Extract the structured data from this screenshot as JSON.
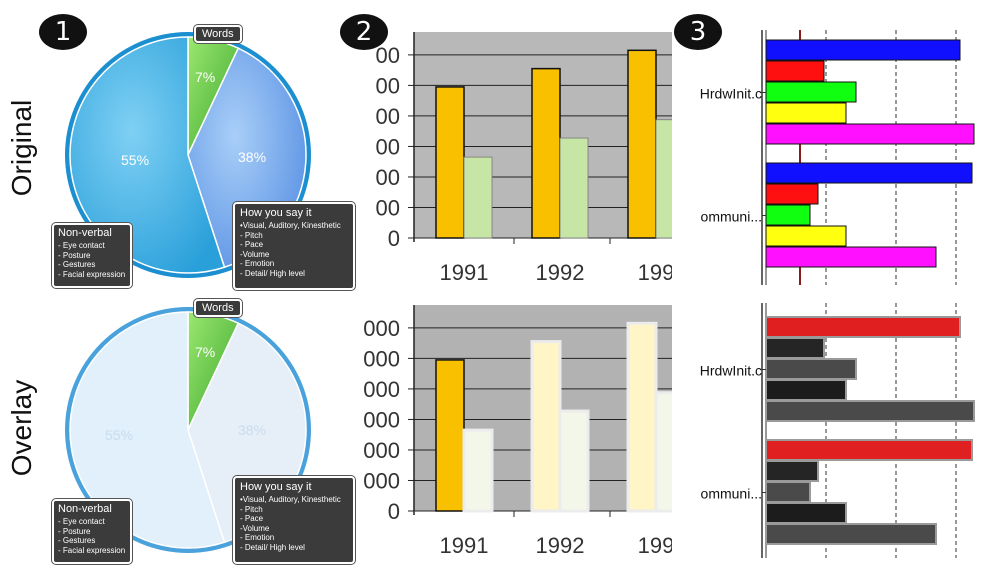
{
  "badges": [
    "1",
    "2",
    "3"
  ],
  "row_labels": [
    "Original",
    "Overlay"
  ],
  "chart_data": [
    {
      "type": "pie",
      "categories": [
        "Words",
        "How you say it",
        "Non-verbal"
      ],
      "values": [
        7,
        38,
        55
      ],
      "slice_labels": [
        "7%",
        "38%",
        "55%"
      ],
      "callouts": {
        "words": "Words",
        "how_title": "How you say it",
        "how_items": [
          "•Visual, Auditory, Kinesthetic",
          "- Pitch",
          "- Pace",
          "-Volume",
          "- Emotion",
          "- Detail/ High level"
        ],
        "nonverbal_title": "Non-verbal",
        "nonverbal_items": [
          "- Eye contact",
          "- Posture",
          "- Gestures",
          "- Facial expression"
        ]
      }
    },
    {
      "type": "bar",
      "categories": [
        "1991",
        "1992",
        "199"
      ],
      "category_labels": [
        "1991",
        "1992",
        "199"
      ],
      "y_tick_labels": [
        "0",
        "00",
        "00",
        "00",
        "00",
        "00",
        "00"
      ],
      "y_tick_labels_overlay": [
        "0",
        "000",
        "000",
        "000",
        "000",
        "000",
        "000"
      ],
      "series": [
        {
          "values": [
            198,
            222,
            246
          ]
        },
        {
          "values": [
            106,
            131,
            155
          ]
        }
      ],
      "ylim": [
        0,
        270
      ],
      "colors": {
        "series1": "#f9c000",
        "series2": "#c7e6a6",
        "plot_bg": "#b8b8b8"
      }
    },
    {
      "type": "bar",
      "orientation": "horizontal",
      "categories": [
        "HrdwInit.c",
        "ommuni..."
      ],
      "series": [
        {
          "values": [
            97,
            103
          ]
        },
        {
          "values": [
            29,
            26
          ]
        },
        {
          "values": [
            45,
            22
          ]
        },
        {
          "values": [
            40,
            40
          ]
        },
        {
          "values": [
            104,
            85
          ]
        }
      ],
      "xlim": [
        0,
        110
      ],
      "colors": [
        "#1010ff",
        "#ff1010",
        "#10ff10",
        "#ffff10",
        "#ff10ff"
      ],
      "overlay_colors": [
        "#e02020",
        "#252525",
        "#4a4a4a",
        "#1c1c1c",
        "#4a4a4a"
      ]
    }
  ]
}
